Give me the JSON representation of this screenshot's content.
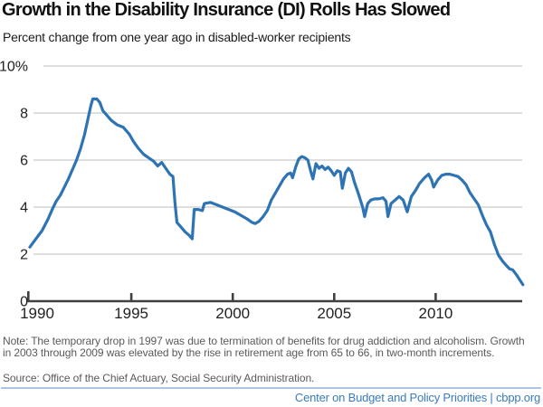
{
  "title": "Growth in the Disability Insurance (DI) Rolls Has Slowed",
  "subtitle": "Percent change from one year ago in disabled-worker recipients",
  "note": "Note: The temporary drop in 1997 was due to termination of benefits for drug addiction and alcoholism. Growth in 2003 through 2009 was elevated by the rise in retirement age from 65 to 66, in two-month increments.",
  "source": "Source: Office of the Chief Actuary, Social Security Administration.",
  "footer": "Center on Budget and Policy Priorities | cbpp.org",
  "colors": {
    "line": "#2e74b5",
    "grid": "#c9c9c9",
    "axis": "#404040",
    "tick_text": "#222222",
    "note_text": "#5a5a5a",
    "footer_text": "#3a7cbd",
    "footer_rule": "#aac6e2"
  },
  "chart_data": {
    "type": "line",
    "title": "Growth in the Disability Insurance (DI) Rolls Has Slowed",
    "subtitle": "Percent change from one year ago in disabled-worker recipients",
    "xlabel": "",
    "ylabel": "Percent change from one year ago",
    "xlim": [
      1990,
      2014.4
    ],
    "ylim": [
      0,
      10
    ],
    "grid": true,
    "legend": "none",
    "y_ticks": [
      {
        "value": 10,
        "label": "10%"
      },
      {
        "value": 8,
        "label": "8"
      },
      {
        "value": 6,
        "label": "6"
      },
      {
        "value": 4,
        "label": "4"
      },
      {
        "value": 2,
        "label": "2"
      },
      {
        "value": 0,
        "label": "0"
      }
    ],
    "x_ticks": [
      {
        "value": 1990,
        "label": "1990"
      },
      {
        "value": 1995,
        "label": "1995"
      },
      {
        "value": 2000,
        "label": "2000"
      },
      {
        "value": 2005,
        "label": "2005"
      },
      {
        "value": 2010,
        "label": "2010"
      }
    ],
    "series": [
      {
        "name": "Percent change in disabled-worker recipients",
        "color": "#2e74b5",
        "points": [
          [
            1990.0,
            2.3
          ],
          [
            1990.3,
            2.65
          ],
          [
            1990.6,
            3.0
          ],
          [
            1990.9,
            3.5
          ],
          [
            1991.1,
            3.9
          ],
          [
            1991.3,
            4.25
          ],
          [
            1991.5,
            4.5
          ],
          [
            1991.7,
            4.85
          ],
          [
            1991.9,
            5.2
          ],
          [
            1992.1,
            5.6
          ],
          [
            1992.3,
            6.0
          ],
          [
            1992.5,
            6.5
          ],
          [
            1992.7,
            7.1
          ],
          [
            1992.85,
            7.7
          ],
          [
            1993.0,
            8.3
          ],
          [
            1993.1,
            8.6
          ],
          [
            1993.3,
            8.6
          ],
          [
            1993.45,
            8.45
          ],
          [
            1993.6,
            8.1
          ],
          [
            1993.8,
            7.9
          ],
          [
            1994.0,
            7.7
          ],
          [
            1994.3,
            7.5
          ],
          [
            1994.6,
            7.4
          ],
          [
            1994.9,
            7.1
          ],
          [
            1995.1,
            6.8
          ],
          [
            1995.35,
            6.5
          ],
          [
            1995.6,
            6.25
          ],
          [
            1995.85,
            6.1
          ],
          [
            1996.1,
            5.95
          ],
          [
            1996.3,
            5.75
          ],
          [
            1996.5,
            5.9
          ],
          [
            1996.7,
            5.65
          ],
          [
            1996.9,
            5.4
          ],
          [
            1997.05,
            5.3
          ],
          [
            1997.15,
            4.2
          ],
          [
            1997.25,
            3.35
          ],
          [
            1997.45,
            3.15
          ],
          [
            1997.65,
            2.95
          ],
          [
            1997.85,
            2.8
          ],
          [
            1998.0,
            2.65
          ],
          [
            1998.1,
            3.9
          ],
          [
            1998.3,
            3.9
          ],
          [
            1998.5,
            3.85
          ],
          [
            1998.6,
            4.15
          ],
          [
            1998.9,
            4.2
          ],
          [
            1999.2,
            4.1
          ],
          [
            1999.5,
            4.0
          ],
          [
            1999.8,
            3.9
          ],
          [
            2000.1,
            3.8
          ],
          [
            2000.4,
            3.65
          ],
          [
            2000.7,
            3.5
          ],
          [
            2000.95,
            3.35
          ],
          [
            2001.1,
            3.3
          ],
          [
            2001.3,
            3.4
          ],
          [
            2001.5,
            3.6
          ],
          [
            2001.7,
            3.85
          ],
          [
            2001.9,
            4.3
          ],
          [
            2002.1,
            4.6
          ],
          [
            2002.3,
            4.9
          ],
          [
            2002.5,
            5.2
          ],
          [
            2002.7,
            5.4
          ],
          [
            2002.85,
            5.45
          ],
          [
            2002.95,
            5.25
          ],
          [
            2003.1,
            5.7
          ],
          [
            2003.25,
            6.05
          ],
          [
            2003.4,
            6.15
          ],
          [
            2003.55,
            6.1
          ],
          [
            2003.7,
            6.0
          ],
          [
            2003.85,
            5.5
          ],
          [
            2003.95,
            5.2
          ],
          [
            2004.1,
            5.85
          ],
          [
            2004.25,
            5.65
          ],
          [
            2004.4,
            5.75
          ],
          [
            2004.55,
            5.6
          ],
          [
            2004.7,
            5.7
          ],
          [
            2004.85,
            5.55
          ],
          [
            2005.0,
            5.35
          ],
          [
            2005.15,
            5.55
          ],
          [
            2005.3,
            5.5
          ],
          [
            2005.4,
            4.8
          ],
          [
            2005.55,
            5.45
          ],
          [
            2005.7,
            5.65
          ],
          [
            2005.85,
            5.5
          ],
          [
            2006.0,
            5.05
          ],
          [
            2006.2,
            4.55
          ],
          [
            2006.4,
            4.0
          ],
          [
            2006.5,
            3.6
          ],
          [
            2006.65,
            4.15
          ],
          [
            2006.8,
            4.3
          ],
          [
            2007.0,
            4.35
          ],
          [
            2007.2,
            4.35
          ],
          [
            2007.4,
            4.4
          ],
          [
            2007.55,
            4.25
          ],
          [
            2007.65,
            3.6
          ],
          [
            2007.8,
            4.15
          ],
          [
            2008.0,
            4.3
          ],
          [
            2008.2,
            4.45
          ],
          [
            2008.4,
            4.3
          ],
          [
            2008.6,
            3.8
          ],
          [
            2008.8,
            4.45
          ],
          [
            2009.0,
            4.7
          ],
          [
            2009.2,
            5.0
          ],
          [
            2009.45,
            5.25
          ],
          [
            2009.65,
            5.4
          ],
          [
            2009.8,
            5.15
          ],
          [
            2009.9,
            4.85
          ],
          [
            2010.1,
            5.15
          ],
          [
            2010.3,
            5.35
          ],
          [
            2010.5,
            5.4
          ],
          [
            2010.7,
            5.4
          ],
          [
            2010.9,
            5.35
          ],
          [
            2011.1,
            5.3
          ],
          [
            2011.3,
            5.15
          ],
          [
            2011.5,
            4.95
          ],
          [
            2011.7,
            4.6
          ],
          [
            2011.9,
            4.35
          ],
          [
            2012.1,
            4.1
          ],
          [
            2012.3,
            3.65
          ],
          [
            2012.5,
            3.25
          ],
          [
            2012.7,
            2.95
          ],
          [
            2012.9,
            2.4
          ],
          [
            2013.1,
            1.95
          ],
          [
            2013.3,
            1.7
          ],
          [
            2013.5,
            1.5
          ],
          [
            2013.65,
            1.37
          ],
          [
            2013.8,
            1.33
          ],
          [
            2014.0,
            1.1
          ],
          [
            2014.15,
            0.9
          ],
          [
            2014.3,
            0.7
          ]
        ]
      }
    ]
  }
}
